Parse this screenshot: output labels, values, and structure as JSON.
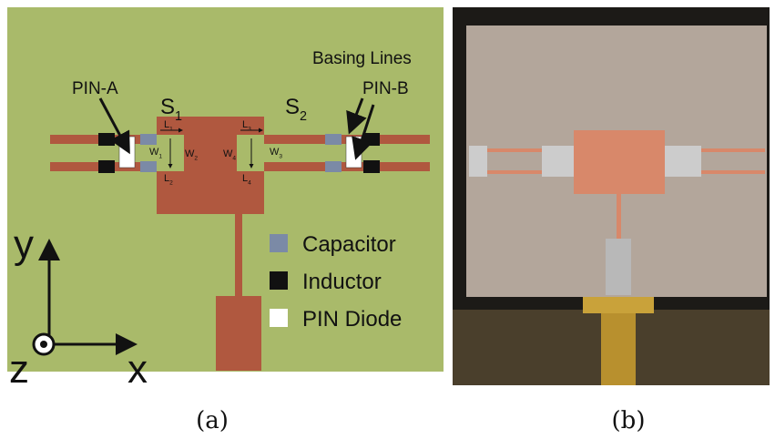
{
  "panel_a": {
    "callouts": {
      "pin_a": "PIN-A",
      "pin_b": "PIN-B",
      "basing_lines": "Basing Lines"
    },
    "slots": [
      {
        "base": "S",
        "sub": "1"
      },
      {
        "base": "S",
        "sub": "2"
      }
    ],
    "dimensions": [
      {
        "base": "L",
        "sub": "1"
      },
      {
        "base": "W",
        "sub": "1"
      },
      {
        "base": "W",
        "sub": "2"
      },
      {
        "base": "L",
        "sub": "2"
      },
      {
        "base": "L",
        "sub": "3"
      },
      {
        "base": "W",
        "sub": "3"
      },
      {
        "base": "W",
        "sub": "4"
      },
      {
        "base": "L",
        "sub": "4"
      }
    ],
    "legend": [
      "Capacitor",
      "Inductor",
      "PIN Diode"
    ],
    "axes": {
      "y": "y",
      "z": "z",
      "x": "x"
    },
    "caption": "(a)"
  },
  "panel_b": {
    "caption": "(b)"
  }
}
